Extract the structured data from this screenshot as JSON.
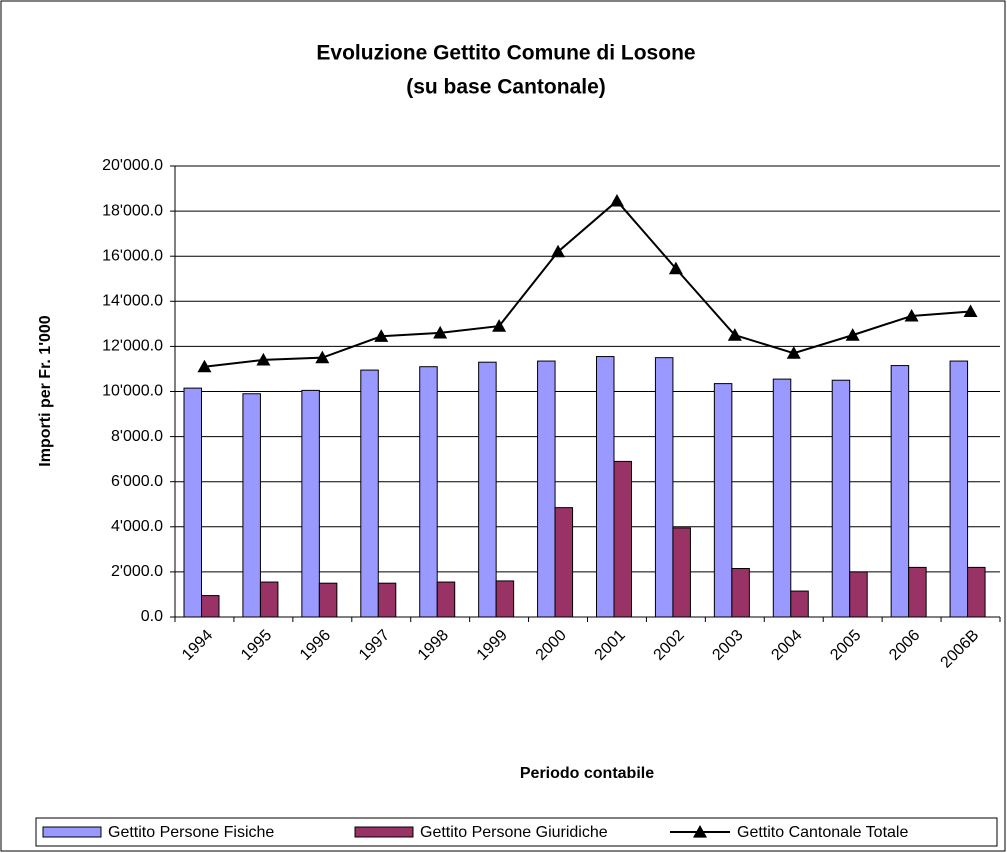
{
  "chart_data": {
    "type": "bar-line",
    "title_lines": [
      "Evoluzione Gettito Comune di Losone",
      "(su base Cantonale)"
    ],
    "y_label": "Importi per Fr. 1'000",
    "x_label": "Periodo contabile",
    "categories": [
      "1994",
      "1995",
      "1996",
      "1997",
      "1998",
      "1999",
      "2000",
      "2001",
      "2002",
      "2003",
      "2004",
      "2005",
      "2006",
      "2006B"
    ],
    "series": [
      {
        "name": "Gettito Persone Fisiche",
        "type": "bar",
        "color": "#9999ff",
        "values": [
          10150,
          9900,
          10050,
          10950,
          11100,
          11300,
          11350,
          11550,
          11500,
          10350,
          10550,
          10500,
          11150,
          11350
        ]
      },
      {
        "name": "Gettito Persone Giuridiche",
        "type": "bar",
        "color": "#993366",
        "values": [
          950,
          1550,
          1500,
          1500,
          1550,
          1600,
          4850,
          6900,
          3950,
          2150,
          1150,
          2000,
          2200,
          2200
        ]
      },
      {
        "name": "Gettito Cantonale Totale",
        "type": "line",
        "color": "#000000",
        "values": [
          11100,
          11400,
          11500,
          12450,
          12600,
          12900,
          16200,
          18450,
          15450,
          12500,
          11700,
          12500,
          13350,
          13550
        ]
      }
    ],
    "ylim": [
      0,
      20000
    ],
    "yticks": [
      {
        "value": 0,
        "label": "0.0"
      },
      {
        "value": 2000,
        "label": "2'000.0"
      },
      {
        "value": 4000,
        "label": "4'000.0"
      },
      {
        "value": 6000,
        "label": "6'000.0"
      },
      {
        "value": 8000,
        "label": "8'000.0"
      },
      {
        "value": 10000,
        "label": "10'000.0"
      },
      {
        "value": 12000,
        "label": "12'000.0"
      },
      {
        "value": 14000,
        "label": "14'000.0"
      },
      {
        "value": 16000,
        "label": "16'000.0"
      },
      {
        "value": 18000,
        "label": "18'000.0"
      },
      {
        "value": 20000,
        "label": "20'000.0"
      }
    ],
    "grid": true,
    "legend": "bottom"
  }
}
